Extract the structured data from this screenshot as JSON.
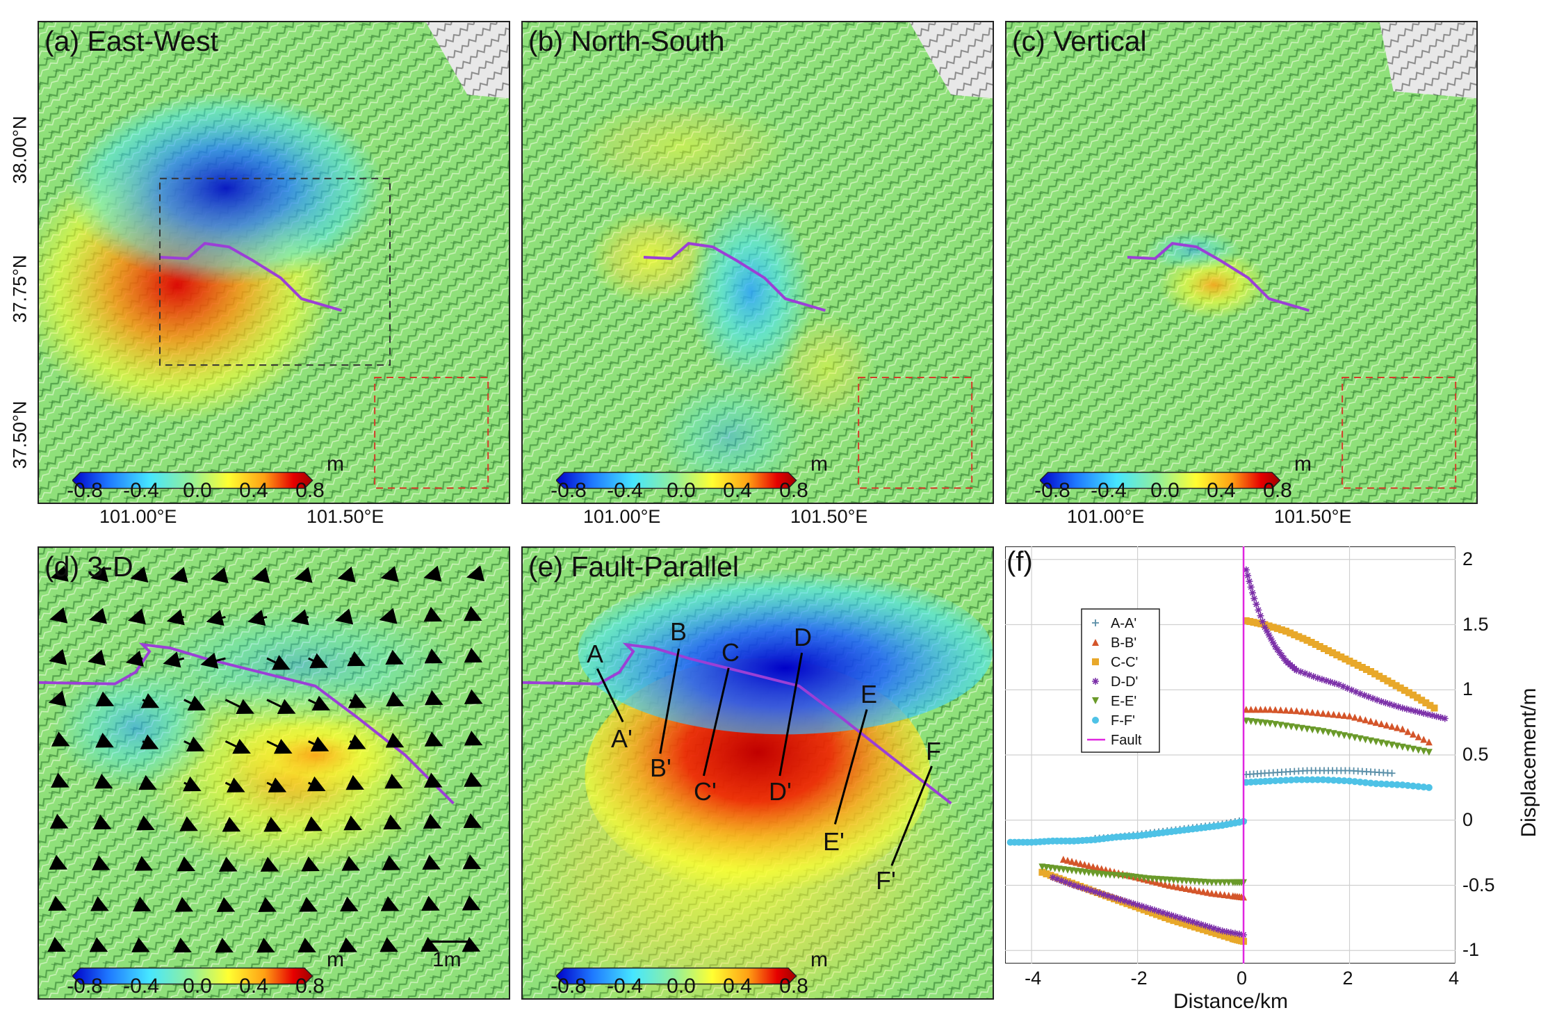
{
  "panels": {
    "a": {
      "title": "(a) East-West"
    },
    "b": {
      "title": "(b) North-South"
    },
    "c": {
      "title": "(c) Vertical"
    },
    "d": {
      "title": "(d) 3-D",
      "scale_label": "1m"
    },
    "e": {
      "title": "(e) Fault-Parallel",
      "profile_labels": [
        "A",
        "A'",
        "B",
        "B'",
        "C",
        "C'",
        "D",
        "D'",
        "E",
        "E'",
        "F",
        "F'"
      ]
    },
    "f": {
      "title": "(f)"
    }
  },
  "map_axes": {
    "x_ticks": [
      "101.00°E",
      "101.50°E"
    ],
    "y_ticks": [
      "38.00°N",
      "37.75°N",
      "37.50°N"
    ]
  },
  "colorbar": {
    "ticks": [
      "-0.8",
      "-0.4",
      "0.0",
      "0.4",
      "0.8"
    ],
    "unit": "m",
    "colors": [
      "#0000c8",
      "#1e78ff",
      "#46e6ff",
      "#96f096",
      "#ffff32",
      "#ffa014",
      "#e60000",
      "#a00000"
    ]
  },
  "colors": {
    "fault": "#9b3fd6",
    "dashed_box_black": "#333333",
    "dashed_box_red": "#d23c2a",
    "background_green": "#8fe07a"
  },
  "chart_data": {
    "type": "scatter",
    "xlabel": "Distance/km",
    "ylabel": "Displacement/m",
    "xlim": [
      -4.5,
      4
    ],
    "ylim": [
      -1.1,
      2.1
    ],
    "x_ticks": [
      "-4",
      "-2",
      "0",
      "2",
      "4"
    ],
    "y_ticks": [
      "-1",
      "-0.5",
      "0",
      "0.5",
      "1",
      "1.5",
      "2"
    ],
    "grid": true,
    "legend_position": "upper-left",
    "series": [
      {
        "name": "A-A'",
        "color": "#5a8fa8",
        "marker": "plus",
        "points": [
          [
            -2.8,
            -0.14
          ],
          [
            -2.4,
            -0.13
          ],
          [
            -2.0,
            -0.11
          ],
          [
            -1.6,
            -0.09
          ],
          [
            -1.2,
            -0.07
          ],
          [
            -0.8,
            -0.05
          ],
          [
            -0.4,
            -0.03
          ],
          [
            0.0,
            0.0
          ],
          [
            0.05,
            0.35
          ],
          [
            0.4,
            0.36
          ],
          [
            0.8,
            0.37
          ],
          [
            1.2,
            0.38
          ],
          [
            1.6,
            0.38
          ],
          [
            2.0,
            0.38
          ],
          [
            2.4,
            0.37
          ],
          [
            2.8,
            0.36
          ]
        ]
      },
      {
        "name": "B-B'",
        "color": "#d4552a",
        "marker": "triangle-up",
        "points": [
          [
            -3.4,
            -0.3
          ],
          [
            -3.0,
            -0.34
          ],
          [
            -2.6,
            -0.38
          ],
          [
            -2.2,
            -0.42
          ],
          [
            -1.8,
            -0.46
          ],
          [
            -1.4,
            -0.5
          ],
          [
            -1.0,
            -0.53
          ],
          [
            -0.6,
            -0.56
          ],
          [
            -0.2,
            -0.58
          ],
          [
            0.0,
            -0.59
          ],
          [
            0.05,
            0.85
          ],
          [
            0.5,
            0.85
          ],
          [
            1.0,
            0.84
          ],
          [
            1.5,
            0.82
          ],
          [
            2.0,
            0.8
          ],
          [
            2.5,
            0.75
          ],
          [
            3.0,
            0.7
          ],
          [
            3.5,
            0.6
          ]
        ]
      },
      {
        "name": "C-C'",
        "color": "#e8a82a",
        "marker": "square",
        "points": [
          [
            -3.8,
            -0.4
          ],
          [
            -3.4,
            -0.46
          ],
          [
            -3.0,
            -0.52
          ],
          [
            -2.6,
            -0.58
          ],
          [
            -2.2,
            -0.64
          ],
          [
            -1.8,
            -0.7
          ],
          [
            -1.4,
            -0.76
          ],
          [
            -1.0,
            -0.81
          ],
          [
            -0.6,
            -0.86
          ],
          [
            -0.2,
            -0.91
          ],
          [
            0.0,
            -0.93
          ],
          [
            0.05,
            1.53
          ],
          [
            0.4,
            1.5
          ],
          [
            0.8,
            1.45
          ],
          [
            1.2,
            1.38
          ],
          [
            1.6,
            1.3
          ],
          [
            2.0,
            1.22
          ],
          [
            2.4,
            1.14
          ],
          [
            2.8,
            1.05
          ],
          [
            3.2,
            0.96
          ],
          [
            3.6,
            0.86
          ]
        ]
      },
      {
        "name": "D-D'",
        "color": "#7b2fa8",
        "marker": "star",
        "points": [
          [
            -3.6,
            -0.44
          ],
          [
            -3.2,
            -0.5
          ],
          [
            -2.8,
            -0.55
          ],
          [
            -2.4,
            -0.6
          ],
          [
            -2.0,
            -0.65
          ],
          [
            -1.6,
            -0.7
          ],
          [
            -1.2,
            -0.75
          ],
          [
            -0.8,
            -0.8
          ],
          [
            -0.4,
            -0.85
          ],
          [
            0.0,
            -0.88
          ],
          [
            0.05,
            1.92
          ],
          [
            0.2,
            1.7
          ],
          [
            0.4,
            1.48
          ],
          [
            0.6,
            1.33
          ],
          [
            0.8,
            1.22
          ],
          [
            1.0,
            1.15
          ],
          [
            1.4,
            1.09
          ],
          [
            1.8,
            1.04
          ],
          [
            2.2,
            0.97
          ],
          [
            2.6,
            0.91
          ],
          [
            3.0,
            0.86
          ],
          [
            3.4,
            0.82
          ],
          [
            3.8,
            0.78
          ]
        ]
      },
      {
        "name": "E-E'",
        "color": "#6a9a2a",
        "marker": "triangle-down",
        "points": [
          [
            -3.8,
            -0.36
          ],
          [
            -3.4,
            -0.38
          ],
          [
            -3.0,
            -0.4
          ],
          [
            -2.6,
            -0.42
          ],
          [
            -2.2,
            -0.43
          ],
          [
            -1.8,
            -0.45
          ],
          [
            -1.4,
            -0.46
          ],
          [
            -1.0,
            -0.47
          ],
          [
            -0.6,
            -0.48
          ],
          [
            -0.2,
            -0.48
          ],
          [
            0.0,
            -0.48
          ],
          [
            0.05,
            0.76
          ],
          [
            0.5,
            0.74
          ],
          [
            1.0,
            0.71
          ],
          [
            1.5,
            0.68
          ],
          [
            2.0,
            0.64
          ],
          [
            2.5,
            0.6
          ],
          [
            3.0,
            0.56
          ],
          [
            3.5,
            0.52
          ]
        ]
      },
      {
        "name": "F-F'",
        "color": "#4ec2e6",
        "marker": "circle",
        "points": [
          [
            -4.4,
            -0.17
          ],
          [
            -4.0,
            -0.17
          ],
          [
            -3.6,
            -0.16
          ],
          [
            -3.2,
            -0.16
          ],
          [
            -2.8,
            -0.15
          ],
          [
            -2.4,
            -0.13
          ],
          [
            -2.0,
            -0.12
          ],
          [
            -1.6,
            -0.1
          ],
          [
            -1.2,
            -0.08
          ],
          [
            -0.8,
            -0.06
          ],
          [
            -0.4,
            -0.04
          ],
          [
            0.0,
            -0.01
          ],
          [
            0.05,
            0.29
          ],
          [
            0.5,
            0.3
          ],
          [
            1.0,
            0.31
          ],
          [
            1.5,
            0.31
          ],
          [
            2.0,
            0.3
          ],
          [
            2.5,
            0.28
          ],
          [
            3.0,
            0.27
          ],
          [
            3.5,
            0.25
          ]
        ]
      },
      {
        "name": "Fault",
        "color": "#e026e0",
        "marker": "line",
        "points": [
          [
            0,
            -1.1
          ],
          [
            0,
            2.1
          ]
        ]
      }
    ]
  }
}
